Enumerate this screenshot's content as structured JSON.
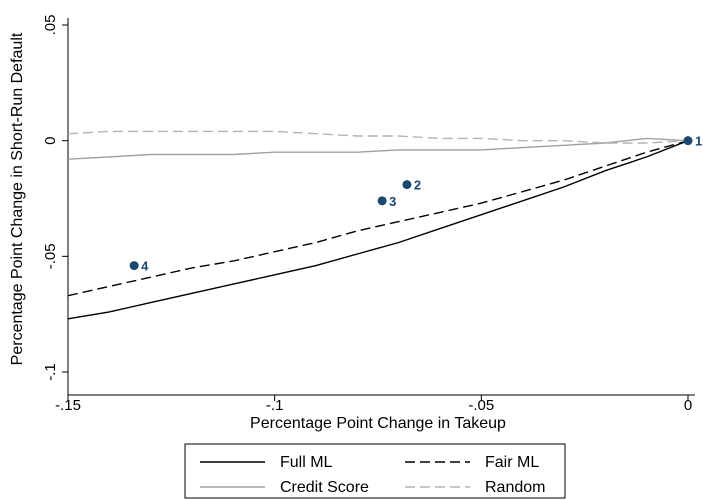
{
  "chart_data": {
    "type": "line",
    "title": "",
    "xlabel": "Percentage Point Change in Takeup",
    "ylabel": "Percentage Point Change in Short-Run Default",
    "xlim": [
      -0.15,
      0
    ],
    "ylim": [
      -0.1,
      0.05
    ],
    "x_ticks": [
      {
        "value": -0.15,
        "label": "-.15"
      },
      {
        "value": -0.1,
        "label": "-.1"
      },
      {
        "value": -0.05,
        "label": "-.05"
      },
      {
        "value": 0,
        "label": "0"
      }
    ],
    "y_ticks": [
      {
        "value": 0.05,
        "label": ".05"
      },
      {
        "value": 0,
        "label": "0"
      },
      {
        "value": -0.05,
        "label": "-.05"
      },
      {
        "value": -0.1,
        "label": "-.1"
      }
    ],
    "grid": false,
    "legend_position": "bottom",
    "series": [
      {
        "name": "Full ML",
        "color": "#000000",
        "dash": "solid",
        "x": [
          -0.15,
          -0.14,
          -0.13,
          -0.12,
          -0.11,
          -0.1,
          -0.09,
          -0.08,
          -0.07,
          -0.06,
          -0.05,
          -0.04,
          -0.03,
          -0.02,
          -0.01,
          0
        ],
        "y": [
          -0.077,
          -0.074,
          -0.07,
          -0.066,
          -0.062,
          -0.058,
          -0.054,
          -0.049,
          -0.044,
          -0.038,
          -0.032,
          -0.026,
          -0.02,
          -0.013,
          -0.007,
          0
        ]
      },
      {
        "name": "Fair ML",
        "color": "#000000",
        "dash": "dashed",
        "x": [
          -0.15,
          -0.14,
          -0.13,
          -0.12,
          -0.11,
          -0.1,
          -0.09,
          -0.08,
          -0.07,
          -0.06,
          -0.05,
          -0.04,
          -0.03,
          -0.02,
          -0.01,
          0
        ],
        "y": [
          -0.067,
          -0.063,
          -0.059,
          -0.055,
          -0.052,
          -0.048,
          -0.044,
          -0.039,
          -0.035,
          -0.031,
          -0.027,
          -0.022,
          -0.017,
          -0.011,
          -0.005,
          0
        ]
      },
      {
        "name": "Credit Score",
        "color": "#a0a0a0",
        "dash": "solid",
        "x": [
          -0.15,
          -0.14,
          -0.13,
          -0.12,
          -0.11,
          -0.1,
          -0.09,
          -0.08,
          -0.07,
          -0.06,
          -0.05,
          -0.04,
          -0.03,
          -0.02,
          -0.01,
          0
        ],
        "y": [
          -0.008,
          -0.007,
          -0.006,
          -0.006,
          -0.006,
          -0.005,
          -0.005,
          -0.005,
          -0.004,
          -0.004,
          -0.004,
          -0.003,
          -0.002,
          -0.001,
          0.001,
          0
        ]
      },
      {
        "name": "Random",
        "color": "#b4b4b4",
        "dash": "dashed",
        "x": [
          -0.15,
          -0.14,
          -0.13,
          -0.12,
          -0.11,
          -0.1,
          -0.09,
          -0.08,
          -0.07,
          -0.06,
          -0.05,
          -0.04,
          -0.03,
          -0.02,
          -0.01,
          0
        ],
        "y": [
          0.003,
          0.004,
          0.004,
          0.004,
          0.004,
          0.004,
          0.003,
          0.002,
          0.002,
          0.001,
          0.001,
          0.0,
          0.0,
          -0.001,
          -0.001,
          0
        ]
      }
    ],
    "points": [
      {
        "label": "1",
        "x": 0,
        "y": 0
      },
      {
        "label": "2",
        "x": -0.068,
        "y": -0.019
      },
      {
        "label": "3",
        "x": -0.074,
        "y": -0.026
      },
      {
        "label": "4",
        "x": -0.134,
        "y": -0.054
      }
    ],
    "point_color": "#1a4870",
    "legend": [
      {
        "label": "Full ML",
        "color": "#000000",
        "dash": "solid"
      },
      {
        "label": "Fair ML",
        "color": "#000000",
        "dash": "dashed"
      },
      {
        "label": "Credit Score",
        "color": "#a0a0a0",
        "dash": "solid"
      },
      {
        "label": "Random",
        "color": "#b4b4b4",
        "dash": "dashed"
      }
    ]
  }
}
